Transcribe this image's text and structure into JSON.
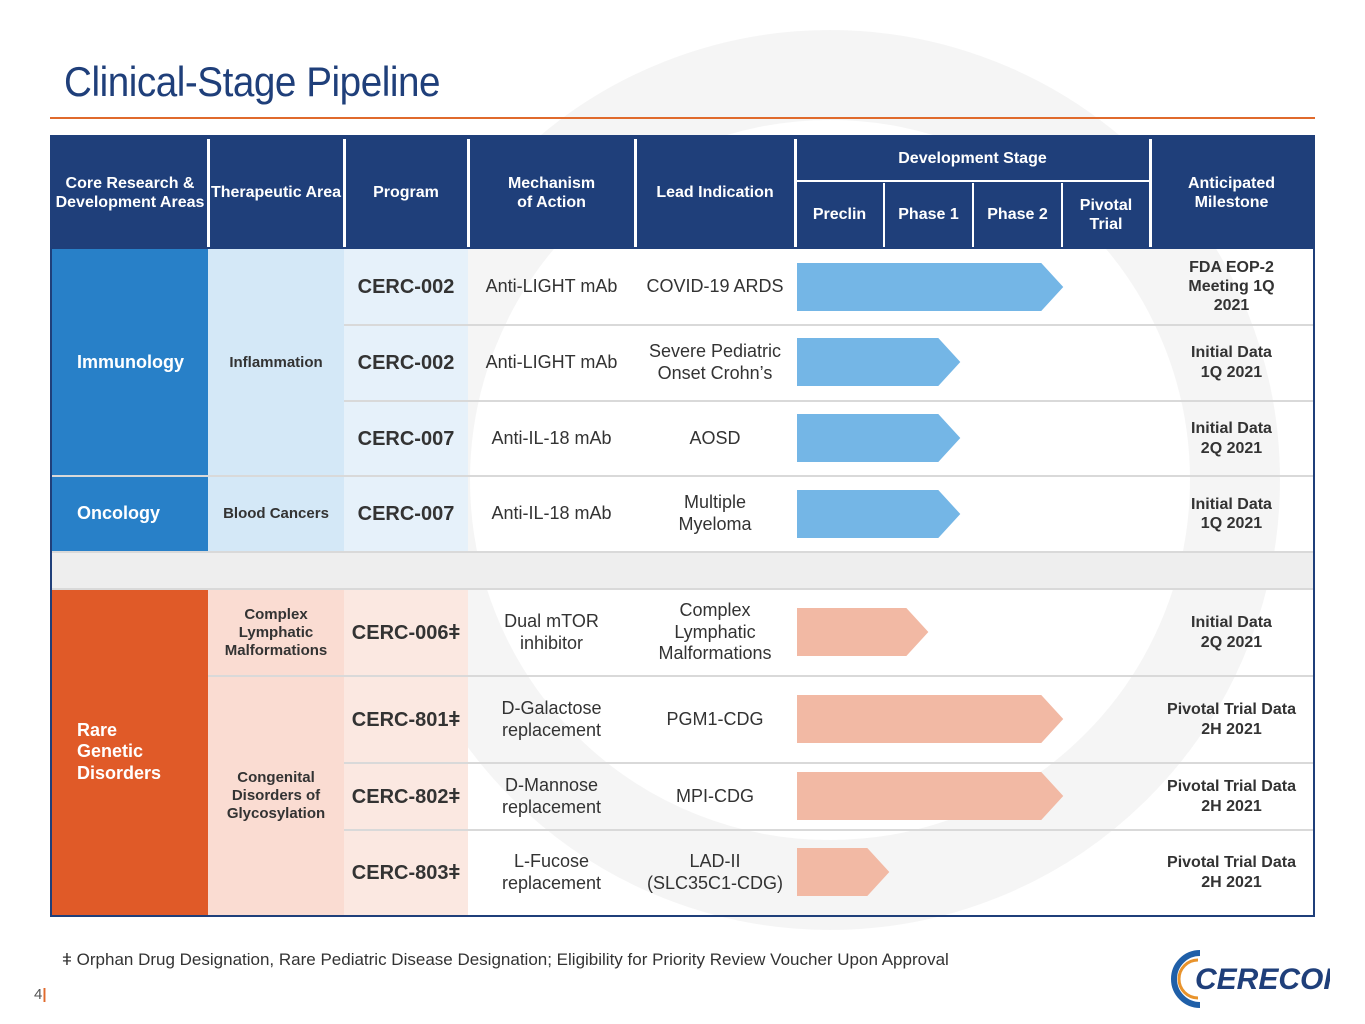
{
  "title": "Clinical-Stage Pipeline",
  "headers": {
    "core": "Core Research & Development Areas",
    "therapeutic": "Therapeutic Area",
    "program": "Program",
    "mechanism": "Mechanism of Action",
    "indication": "Lead Indication",
    "stage": "Development Stage",
    "preclin": "Preclin",
    "phase1": "Phase 1",
    "phase2": "Phase 2",
    "pivotal": "Pivotal Trial",
    "milestone": "Anticipated Milestone"
  },
  "areas": {
    "immunology": "Immunology",
    "oncology": "Oncology",
    "rare": "Rare Genetic Disorders"
  },
  "therapeutic": {
    "inflammation": "Inflammation",
    "blood": "Blood Cancers",
    "clm": "Complex Lymphatic Malformations",
    "cdg": "Congenital Disorders of Glycosylation"
  },
  "rows": [
    {
      "program": "CERC-002",
      "mechanism": "Anti-LIGHT mAb",
      "indication": "COVID-19 ARDS",
      "milestone": "FDA EOP-2 Meeting 1Q 2021",
      "progress": 0.75
    },
    {
      "program": "CERC-002",
      "mechanism": "Anti-LIGHT mAb",
      "indication": "Severe Pediatric Onset Crohn’s",
      "milestone": "Initial Data 1Q 2021",
      "progress": 0.46
    },
    {
      "program": "CERC-007",
      "mechanism": "Anti-IL-18 mAb",
      "indication": "AOSD",
      "milestone": "Initial Data 2Q 2021",
      "progress": 0.46
    },
    {
      "program": "CERC-007",
      "mechanism": "Anti-IL-18 mAb",
      "indication": "Multiple Myeloma",
      "milestone": "Initial Data 1Q 2021",
      "progress": 0.46
    },
    {
      "program": "CERC-006ǂ",
      "mechanism": "Dual mTOR inhibitor",
      "indication": "Complex Lymphatic Malformations",
      "milestone": "Initial Data 2Q 2021",
      "progress": 0.37
    },
    {
      "program": "CERC-801ǂ",
      "mechanism": "D-Galactose replacement",
      "indication": "PGM1-CDG",
      "milestone": "Pivotal Trial Data 2H 2021",
      "progress": 0.75
    },
    {
      "program": "CERC-802ǂ",
      "mechanism": "D-Mannose replacement",
      "indication": "MPI-CDG",
      "milestone": "Pivotal Trial Data 2H 2021",
      "progress": 0.75
    },
    {
      "program": "CERC-803ǂ",
      "mechanism": "L-Fucose replacement",
      "indication": "LAD-II (SLC35C1-CDG)",
      "milestone": "Pivotal Trial Data 2H 2021",
      "progress": 0.26
    }
  ],
  "footnote": "ǂ Orphan Drug Designation, Rare Pediatric Disease Designation; Eligibility for Priority Review Voucher Upon Approval",
  "page_number": "4",
  "logo_text": "CERECOR",
  "colors": {
    "navy": "#1f3f7a",
    "blue": "#2880c8",
    "orange": "#e05a28",
    "arrow_blue": "#74b6e6",
    "arrow_peach": "#f2b9a4"
  }
}
